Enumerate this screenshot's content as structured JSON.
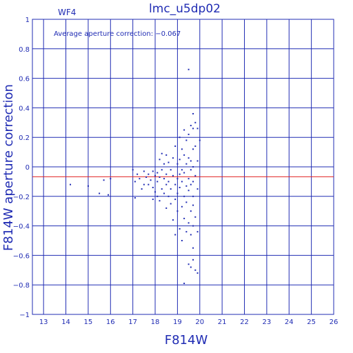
{
  "chart_data": {
    "type": "scatter",
    "title": "lmc_u5dp02",
    "subtitle": "WF4",
    "annotation": "Average aperture correction: −0.067",
    "xlabel": "F814W",
    "ylabel": "F814W aperture correction",
    "xlim": [
      12.5,
      26
    ],
    "ylim": [
      -1,
      1
    ],
    "xticks": [
      13,
      14,
      15,
      16,
      17,
      18,
      19,
      20,
      21,
      22,
      23,
      24,
      25,
      26
    ],
    "yticks": [
      -1,
      -0.8,
      -0.6,
      -0.4,
      -0.2,
      0,
      0.2,
      0.4,
      0.6,
      0.8,
      1
    ],
    "xtick_labels": [
      "13",
      "14",
      "15",
      "16",
      "17",
      "18",
      "19",
      "20",
      "21",
      "22",
      "23",
      "24",
      "25",
      "26"
    ],
    "ytick_labels": [
      "−1",
      "−0.8",
      "−0.6",
      "−0.4",
      "−0.2",
      "0",
      "0.2",
      "0.4",
      "0.6",
      "0.8",
      "1"
    ],
    "grid": true,
    "reference_line": {
      "y": -0.067
    },
    "colors": {
      "axes": "#1f2bb3",
      "points": "#1f2bb3",
      "reference": "#e02020"
    },
    "points": [
      [
        14.2,
        -0.12
      ],
      [
        15.0,
        -0.13
      ],
      [
        15.5,
        -0.18
      ],
      [
        15.7,
        -0.09
      ],
      [
        15.9,
        -0.19
      ],
      [
        16.0,
        -0.08
      ],
      [
        17.0,
        -0.02
      ],
      [
        17.1,
        -0.1
      ],
      [
        17.1,
        -0.21
      ],
      [
        17.2,
        -0.05
      ],
      [
        17.3,
        -0.08
      ],
      [
        17.4,
        -0.15
      ],
      [
        17.5,
        -0.03
      ],
      [
        17.5,
        -0.12
      ],
      [
        17.6,
        -0.07
      ],
      [
        17.7,
        -0.05
      ],
      [
        17.7,
        -0.12
      ],
      [
        17.8,
        -0.09
      ],
      [
        17.9,
        -0.03
      ],
      [
        17.9,
        -0.14
      ],
      [
        17.9,
        -0.22
      ],
      [
        18.0,
        -0.06
      ],
      [
        18.0,
        -0.17
      ],
      [
        18.1,
        -0.04
      ],
      [
        18.1,
        -0.1
      ],
      [
        18.1,
        -0.2
      ],
      [
        18.2,
        0.05
      ],
      [
        18.2,
        -0.07
      ],
      [
        18.2,
        -0.23
      ],
      [
        18.3,
        0.09
      ],
      [
        18.3,
        -0.02
      ],
      [
        18.3,
        -0.15
      ],
      [
        18.4,
        0.02
      ],
      [
        18.4,
        -0.08
      ],
      [
        18.4,
        -0.18
      ],
      [
        18.5,
        0.08
      ],
      [
        18.5,
        -0.05
      ],
      [
        18.5,
        -0.12
      ],
      [
        18.5,
        -0.28
      ],
      [
        18.6,
        0.03
      ],
      [
        18.6,
        -0.1
      ],
      [
        18.6,
        -0.2
      ],
      [
        18.7,
        -0.02
      ],
      [
        18.7,
        -0.15
      ],
      [
        18.7,
        -0.25
      ],
      [
        18.8,
        0.06
      ],
      [
        18.8,
        -0.06
      ],
      [
        18.8,
        -0.36
      ],
      [
        18.9,
        0.14
      ],
      [
        18.9,
        -0.12
      ],
      [
        18.9,
        -0.22
      ],
      [
        18.9,
        -0.46
      ],
      [
        19.0,
        0.02
      ],
      [
        19.0,
        -0.08
      ],
      [
        19.0,
        -0.18
      ],
      [
        19.0,
        -0.3
      ],
      [
        19.1,
        0.2
      ],
      [
        19.1,
        0.05
      ],
      [
        19.1,
        -0.05
      ],
      [
        19.1,
        -0.14
      ],
      [
        19.1,
        -0.42
      ],
      [
        19.2,
        0.12
      ],
      [
        19.2,
        -0.02
      ],
      [
        19.2,
        -0.1
      ],
      [
        19.2,
        -0.27
      ],
      [
        19.2,
        -0.5
      ],
      [
        19.3,
        0.25
      ],
      [
        19.3,
        0.08
      ],
      [
        19.3,
        -0.04
      ],
      [
        19.3,
        -0.2
      ],
      [
        19.3,
        -0.35
      ],
      [
        19.3,
        -0.79
      ],
      [
        19.4,
        0.18
      ],
      [
        19.4,
        0.02
      ],
      [
        19.4,
        -0.13
      ],
      [
        19.4,
        -0.24
      ],
      [
        19.4,
        -0.44
      ],
      [
        19.5,
        0.22
      ],
      [
        19.5,
        0.06
      ],
      [
        19.5,
        -0.08
      ],
      [
        19.5,
        -0.16
      ],
      [
        19.5,
        -0.38
      ],
      [
        19.5,
        -0.66
      ],
      [
        19.5,
        0.66
      ],
      [
        19.6,
        0.28
      ],
      [
        19.6,
        0.04
      ],
      [
        19.6,
        -0.02
      ],
      [
        19.6,
        -0.12
      ],
      [
        19.6,
        -0.3
      ],
      [
        19.6,
        -0.46
      ],
      [
        19.6,
        -0.68
      ],
      [
        19.7,
        0.36
      ],
      [
        19.7,
        0.26
      ],
      [
        19.7,
        0.12
      ],
      [
        19.7,
        0.0
      ],
      [
        19.7,
        -0.1
      ],
      [
        19.7,
        -0.2
      ],
      [
        19.7,
        -0.26
      ],
      [
        19.7,
        -0.4
      ],
      [
        19.7,
        -0.55
      ],
      [
        19.7,
        -0.63
      ],
      [
        19.8,
        0.3
      ],
      [
        19.8,
        0.14
      ],
      [
        19.8,
        -0.06
      ],
      [
        19.8,
        -0.34
      ],
      [
        19.8,
        -0.7
      ],
      [
        19.9,
        0.26
      ],
      [
        19.9,
        0.04
      ],
      [
        19.9,
        -0.15
      ],
      [
        19.9,
        -0.44
      ],
      [
        19.9,
        -0.72
      ],
      [
        20.0,
        0.18
      ]
    ]
  }
}
